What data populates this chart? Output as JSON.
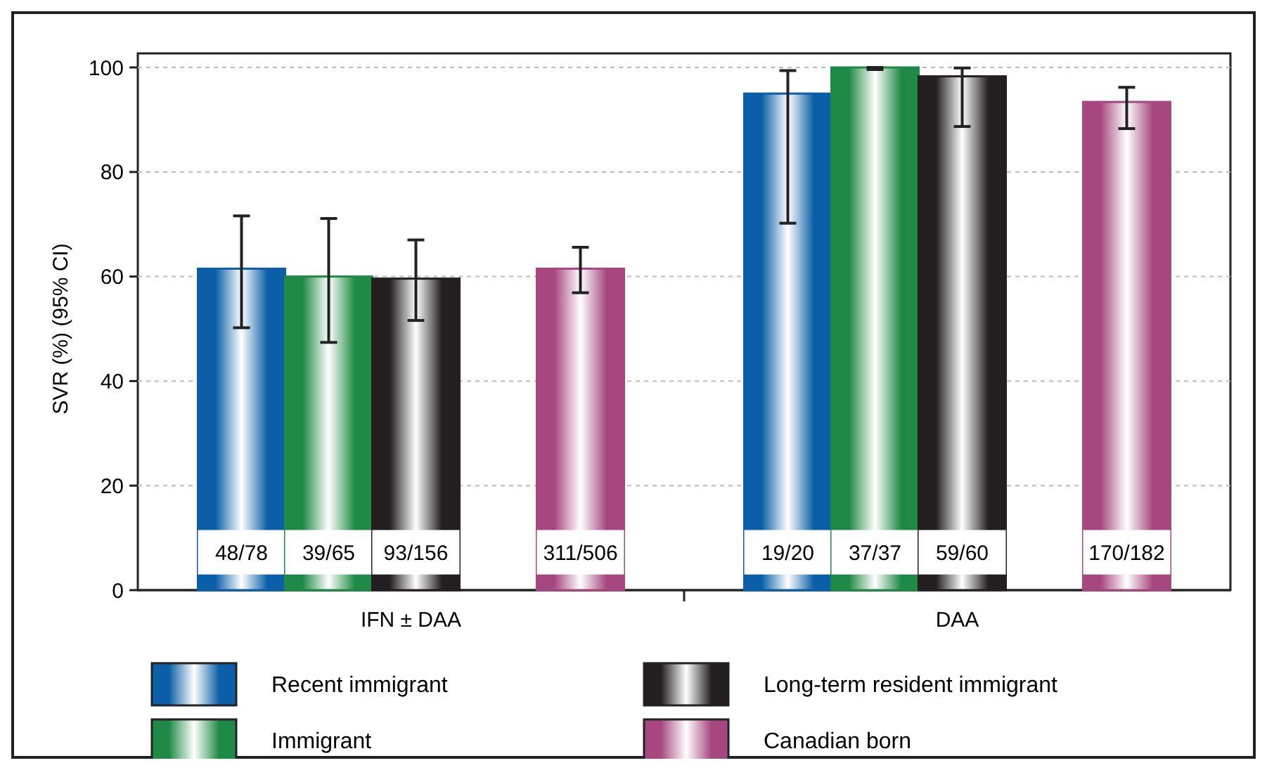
{
  "chart_data": {
    "type": "bar",
    "ylabel": "SVR (%) (95% CI)",
    "categories": [
      "IFN ± DAA",
      "DAA"
    ],
    "ylim": [
      0,
      100
    ],
    "yticks": [
      0,
      20,
      40,
      60,
      80,
      100
    ],
    "grid": "y",
    "legend": "bottom",
    "series": [
      {
        "name": "Recent immigrant",
        "color": "#0a5fa8",
        "values": [
          61.5,
          95
        ],
        "errors": [
          [
            50.2,
            71.6
          ],
          [
            70.2,
            99.4
          ]
        ],
        "value_labels": [
          "48/78",
          "19/20"
        ]
      },
      {
        "name": "Immigrant",
        "color": "#1f8a45",
        "values": [
          60,
          100
        ],
        "errors": [
          [
            47.4,
            71.1
          ],
          [
            99.6,
            100
          ]
        ],
        "value_labels": [
          "39/65",
          "37/37"
        ]
      },
      {
        "name": "Long-term resident immigrant",
        "color": "#231f20",
        "values": [
          59.6,
          98.3
        ],
        "errors": [
          [
            51.6,
            67
          ],
          [
            88.7,
            99.9
          ]
        ],
        "value_labels": [
          "93/156",
          "59/60"
        ]
      },
      {
        "name": "Canadian born",
        "color": "#a6477f",
        "values": [
          61.5,
          93.4
        ],
        "errors": [
          [
            56.9,
            65.6
          ],
          [
            88.3,
            96.2
          ]
        ],
        "value_labels": [
          "311/506",
          "170/182"
        ]
      }
    ]
  }
}
